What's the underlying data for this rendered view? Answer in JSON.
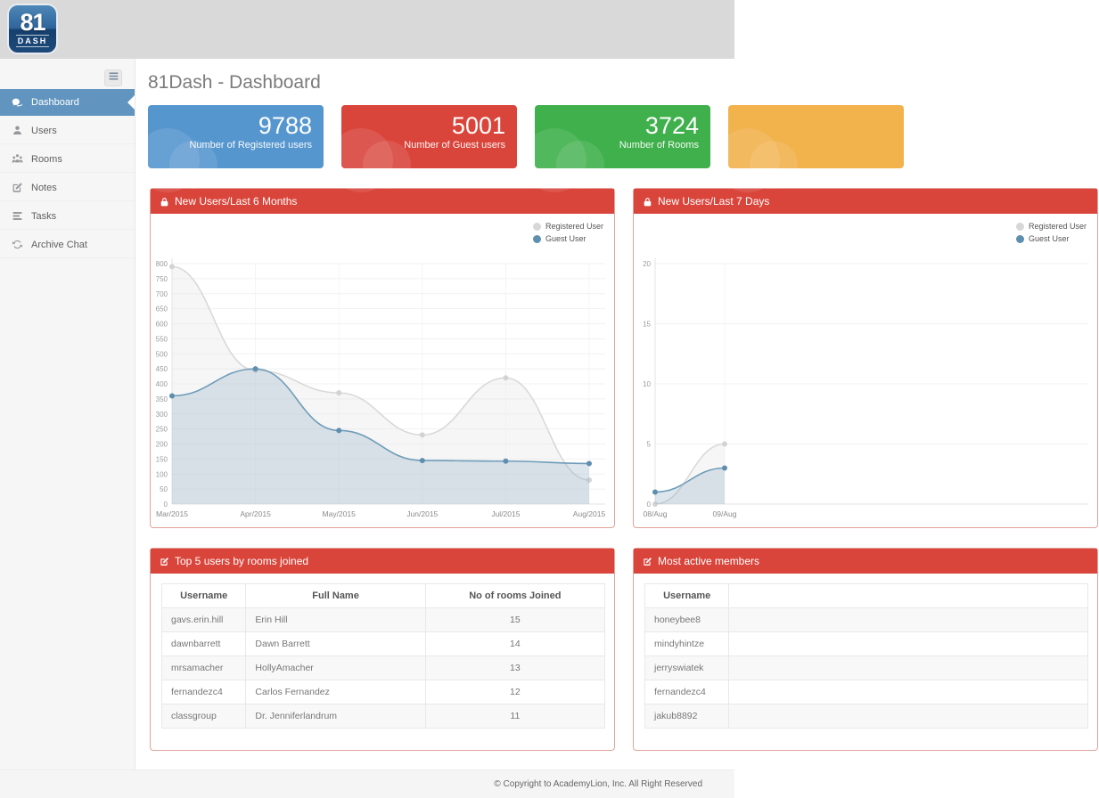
{
  "topbar": {
    "logo": {
      "line1": "81",
      "line2": "DASH"
    }
  },
  "sidebar": {
    "toggle_icon": "hamburger-icon",
    "items": [
      {
        "label": "Dashboard",
        "icon": "comments-icon",
        "active": true
      },
      {
        "label": "Users",
        "icon": "user-icon",
        "active": false
      },
      {
        "label": "Rooms",
        "icon": "rooms-icon",
        "active": false
      },
      {
        "label": "Notes",
        "icon": "notes-icon",
        "active": false
      },
      {
        "label": "Tasks",
        "icon": "tasks-icon",
        "active": false
      },
      {
        "label": "Archive Chat",
        "icon": "archive-chat-icon",
        "active": false
      }
    ]
  },
  "page": {
    "title": "81Dash - Dashboard"
  },
  "stat_cards": [
    {
      "value": "9788",
      "label": "Number of Registered users",
      "color": "#5696ce",
      "name": "registered-users"
    },
    {
      "value": "5001",
      "label": "Number of Guest users",
      "color": "#d9453b",
      "name": "guest-users"
    },
    {
      "value": "3724",
      "label": "Number of Rooms",
      "color": "#3fb04b",
      "name": "rooms"
    },
    {
      "value": "",
      "label": "",
      "color": "#f2b24c",
      "name": "partial-card"
    }
  ],
  "chart_data": [
    {
      "type": "line",
      "title": "New Users/Last 6 Months",
      "categories": [
        "Mar/2015",
        "Apr/2015",
        "May/2015",
        "Jun/2015",
        "Jul/2015",
        "Aug/2015"
      ],
      "series": [
        {
          "name": "Registered User",
          "color": "#d9d9d9",
          "dot": "#d3d3d3",
          "fill": "rgba(228,228,228,0.35)",
          "values": [
            790,
            445,
            370,
            230,
            420,
            80
          ]
        },
        {
          "name": "Guest User",
          "color": "#6f9cba",
          "dot": "#5e8fae",
          "fill": "rgba(143,173,196,0.30)",
          "values": [
            360,
            450,
            245,
            145,
            143,
            135
          ]
        }
      ],
      "ylim": [
        0,
        800
      ],
      "ytick_step": 50,
      "x_slots": 5,
      "grid": true,
      "legend_position": "top-right"
    },
    {
      "type": "line",
      "title": "New Users/Last 7 Days",
      "categories": [
        "08/Aug",
        "09/Aug"
      ],
      "series": [
        {
          "name": "Registered User",
          "color": "#d9d9d9",
          "dot": "#d3d3d3",
          "fill": "rgba(228,228,228,0.35)",
          "values": [
            0,
            5
          ]
        },
        {
          "name": "Guest User",
          "color": "#6f9cba",
          "dot": "#5e8fae",
          "fill": "rgba(143,173,196,0.30)",
          "values": [
            1,
            3
          ]
        }
      ],
      "ylim": [
        0,
        20
      ],
      "ytick_step": 5,
      "x_slots": 6,
      "grid": true,
      "legend_position": "top-right"
    }
  ],
  "tables": [
    {
      "title": "Top 5 users by rooms joined",
      "headers": [
        "Username",
        "Full Name",
        "No of rooms Joined"
      ],
      "rows": [
        [
          "gavs.erin.hill",
          "Erin Hill",
          "15"
        ],
        [
          "dawnbarrett",
          "Dawn Barrett",
          "14"
        ],
        [
          "mrsamacher",
          "HollyAmacher",
          "13"
        ],
        [
          "fernandezc4",
          "Carlos Fernandez",
          "12"
        ],
        [
          "classgroup",
          "Dr. Jenniferlandrum",
          "11"
        ]
      ]
    },
    {
      "title": "Most active members",
      "headers": [
        "Username",
        ""
      ],
      "rows": [
        [
          "honeybee8",
          ""
        ],
        [
          "mindyhintze",
          ""
        ],
        [
          "jerryswiatek",
          ""
        ],
        [
          "fernandezc4",
          ""
        ],
        [
          "jakub8892",
          ""
        ]
      ]
    }
  ],
  "footer": {
    "copyright": "© Copyright to AcademyLion, Inc. All Right Reserved"
  }
}
